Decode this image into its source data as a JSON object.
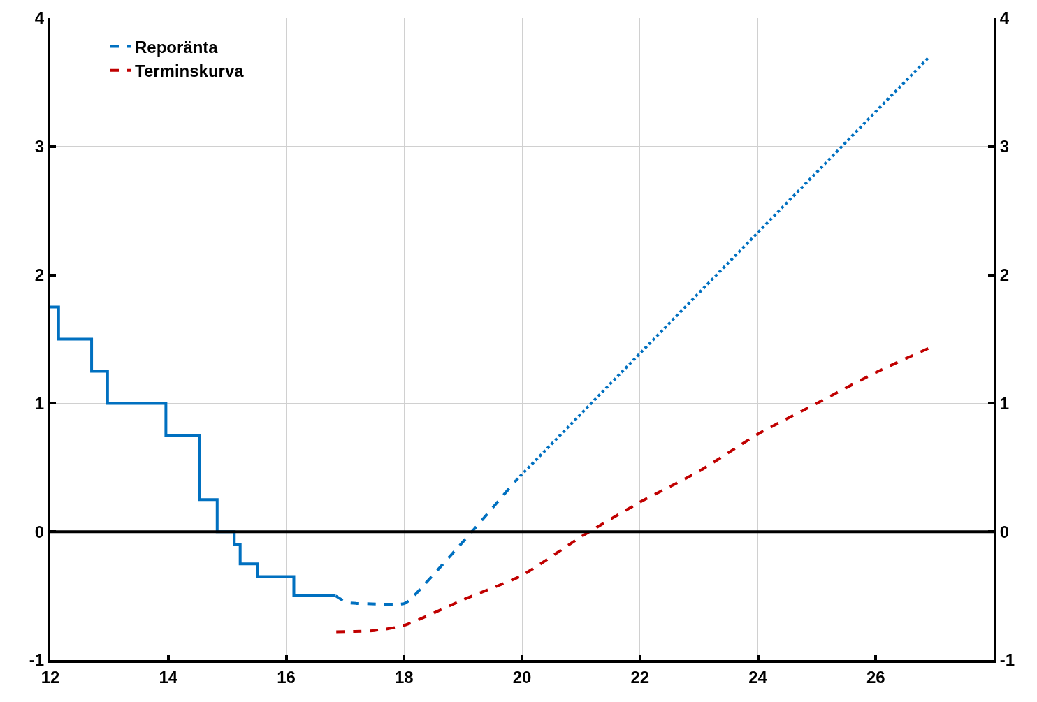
{
  "chart_data": {
    "type": "line",
    "xlim": [
      12,
      28
    ],
    "xticks": [
      12,
      14,
      16,
      18,
      20,
      22,
      24,
      26
    ],
    "ylim": [
      -1,
      4
    ],
    "yticks": [
      -1,
      0,
      1,
      2,
      3,
      4
    ],
    "y2lim": [
      -1,
      4
    ],
    "y2ticks": [
      -1,
      0,
      1,
      2,
      3,
      4
    ],
    "grid": true,
    "legend": "top left",
    "series": [
      {
        "type": "step",
        "color": "#0070c0",
        "line_style": "solid",
        "x": [
          12.0,
          12.14,
          12.7,
          12.97,
          13.96,
          14.53,
          14.83,
          15.12,
          15.22,
          15.51,
          16.13,
          16.84
        ],
        "values": [
          1.75,
          1.5,
          1.25,
          1.0,
          0.75,
          0.25,
          0,
          -0.1,
          -0.25,
          -0.35,
          -0.5,
          -0.5
        ]
      },
      {
        "name": "Reporänta",
        "type": "line",
        "color": "#0070c0",
        "line_style": "dashed",
        "x": [
          16.84,
          17.03,
          17.3,
          18.0,
          18.1,
          19.15,
          19.9
        ],
        "values": [
          -0.5,
          -0.55,
          -0.56,
          -0.56,
          -0.53,
          0,
          0.4
        ]
      },
      {
        "type": "line",
        "color": "#0070c0",
        "line_style": "dotted",
        "x": [
          19.9,
          26.91
        ],
        "values": [
          0.4,
          3.7
        ]
      },
      {
        "name": "Terminskurva",
        "type": "line",
        "color": "#c00000",
        "line_style": "dashed",
        "x": [
          16.85,
          17.5,
          18,
          19,
          20,
          21,
          22,
          23,
          24,
          25,
          26,
          26.9
        ],
        "values": [
          -0.78,
          -0.77,
          -0.73,
          -0.53,
          -0.34,
          -0.04,
          0.23,
          0.47,
          0.76,
          1.0,
          1.24,
          1.43
        ]
      }
    ],
    "ref_lines": [
      {
        "axis": "y",
        "value": 0,
        "color": "#000000",
        "line_style": "solid"
      }
    ]
  }
}
